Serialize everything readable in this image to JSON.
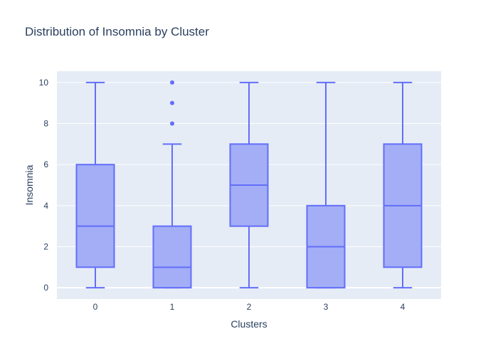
{
  "chart_data": {
    "type": "box",
    "title": "Distribution of Insomnia by Cluster",
    "xlabel": "Clusters",
    "ylabel": "Insomnia",
    "categories": [
      "0",
      "1",
      "2",
      "3",
      "4"
    ],
    "ylim": [
      -0.55,
      10.55
    ],
    "yticks": [
      0,
      2,
      4,
      6,
      8,
      10
    ],
    "grid": true,
    "colors": {
      "box_fill": "#a3aef6",
      "box_line": "#636efa",
      "plot_bg": "#e5ecf6",
      "grid": "#ffffff",
      "text": "#2a3f5f"
    },
    "boxes": [
      {
        "category": "0",
        "min": 0,
        "q1": 1,
        "median": 3,
        "q3": 6,
        "max": 10,
        "outliers": []
      },
      {
        "category": "1",
        "min": 0,
        "q1": 0,
        "median": 1,
        "q3": 3,
        "max": 7,
        "outliers": [
          8,
          9,
          10
        ]
      },
      {
        "category": "2",
        "min": 0,
        "q1": 3,
        "median": 5,
        "q3": 7,
        "max": 10,
        "outliers": []
      },
      {
        "category": "3",
        "min": 0,
        "q1": 0,
        "median": 2,
        "q3": 4,
        "max": 10,
        "outliers": []
      },
      {
        "category": "4",
        "min": 0,
        "q1": 1,
        "median": 4,
        "q3": 7,
        "max": 10,
        "outliers": []
      }
    ]
  }
}
